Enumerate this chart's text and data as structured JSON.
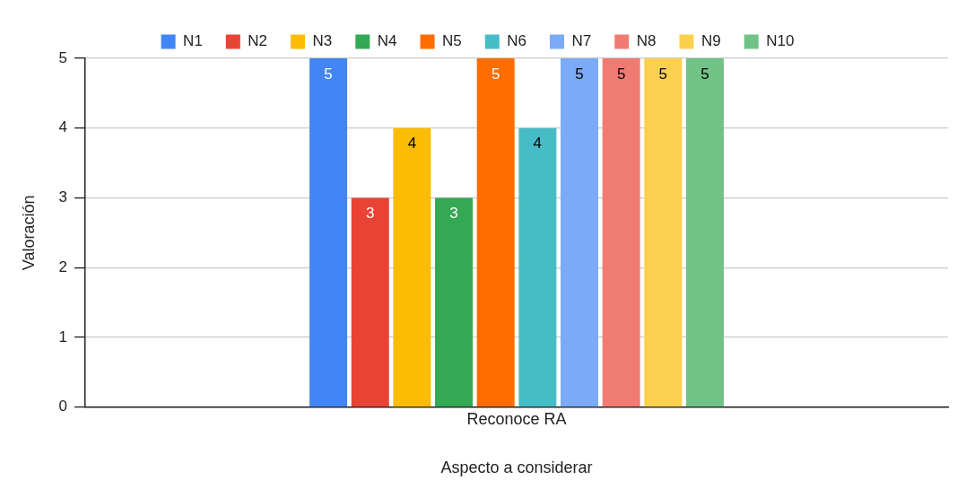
{
  "chart_data": {
    "type": "bar",
    "xlabel": "Aspecto a considerar",
    "ylabel": "Valoración",
    "categories": [
      "Reconoce RA"
    ],
    "series": [
      {
        "name": "N1",
        "color": "#4285f4",
        "values": [
          5
        ]
      },
      {
        "name": "N2",
        "color": "#ea4335",
        "values": [
          3
        ]
      },
      {
        "name": "N3",
        "color": "#fbbc04",
        "values": [
          4
        ]
      },
      {
        "name": "N4",
        "color": "#34a853",
        "values": [
          3
        ]
      },
      {
        "name": "N5",
        "color": "#ff6d01",
        "values": [
          5
        ]
      },
      {
        "name": "N6",
        "color": "#46bdc6",
        "values": [
          4
        ]
      },
      {
        "name": "N7",
        "color": "#7baaf7",
        "values": [
          5
        ]
      },
      {
        "name": "N8",
        "color": "#f07b72",
        "values": [
          5
        ]
      },
      {
        "name": "N9",
        "color": "#fcd04f",
        "values": [
          5
        ]
      },
      {
        "name": "N10",
        "color": "#71c287",
        "values": [
          5
        ]
      }
    ],
    "ylim": [
      0,
      5
    ],
    "yticks": [
      0,
      1,
      2,
      3,
      4,
      5
    ],
    "grid": "y",
    "legend": "top",
    "data_labels": true
  }
}
